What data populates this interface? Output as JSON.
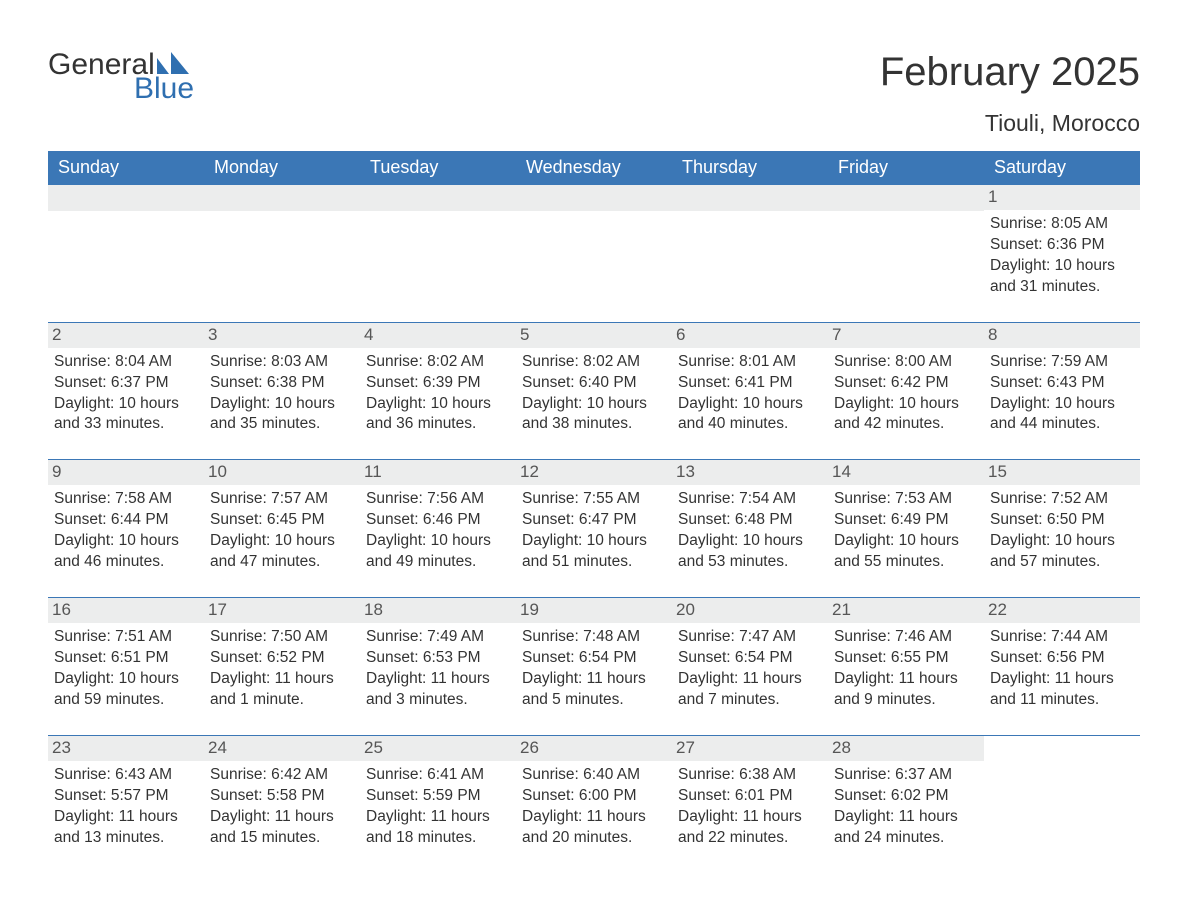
{
  "brand": {
    "line1": "General",
    "line2": "Blue",
    "icon_color": "#2f6fb0",
    "text_color": "#333333"
  },
  "header": {
    "title": "February 2025",
    "location": "Tiouli, Morocco"
  },
  "colors": {
    "header_bg": "#3b77b6",
    "header_fg": "#ffffff",
    "stripe_bg": "#eceded",
    "border": "#3b77b6",
    "text": "#333333",
    "muted": "#565656"
  },
  "days_of_week": [
    "Sunday",
    "Monday",
    "Tuesday",
    "Wednesday",
    "Thursday",
    "Friday",
    "Saturday"
  ],
  "weeks": [
    [
      null,
      null,
      null,
      null,
      null,
      null,
      {
        "n": "1",
        "sunrise": "Sunrise: 8:05 AM",
        "sunset": "Sunset: 6:36 PM",
        "daylight": "Daylight: 10 hours and 31 minutes."
      }
    ],
    [
      {
        "n": "2",
        "sunrise": "Sunrise: 8:04 AM",
        "sunset": "Sunset: 6:37 PM",
        "daylight": "Daylight: 10 hours and 33 minutes."
      },
      {
        "n": "3",
        "sunrise": "Sunrise: 8:03 AM",
        "sunset": "Sunset: 6:38 PM",
        "daylight": "Daylight: 10 hours and 35 minutes."
      },
      {
        "n": "4",
        "sunrise": "Sunrise: 8:02 AM",
        "sunset": "Sunset: 6:39 PM",
        "daylight": "Daylight: 10 hours and 36 minutes."
      },
      {
        "n": "5",
        "sunrise": "Sunrise: 8:02 AM",
        "sunset": "Sunset: 6:40 PM",
        "daylight": "Daylight: 10 hours and 38 minutes."
      },
      {
        "n": "6",
        "sunrise": "Sunrise: 8:01 AM",
        "sunset": "Sunset: 6:41 PM",
        "daylight": "Daylight: 10 hours and 40 minutes."
      },
      {
        "n": "7",
        "sunrise": "Sunrise: 8:00 AM",
        "sunset": "Sunset: 6:42 PM",
        "daylight": "Daylight: 10 hours and 42 minutes."
      },
      {
        "n": "8",
        "sunrise": "Sunrise: 7:59 AM",
        "sunset": "Sunset: 6:43 PM",
        "daylight": "Daylight: 10 hours and 44 minutes."
      }
    ],
    [
      {
        "n": "9",
        "sunrise": "Sunrise: 7:58 AM",
        "sunset": "Sunset: 6:44 PM",
        "daylight": "Daylight: 10 hours and 46 minutes."
      },
      {
        "n": "10",
        "sunrise": "Sunrise: 7:57 AM",
        "sunset": "Sunset: 6:45 PM",
        "daylight": "Daylight: 10 hours and 47 minutes."
      },
      {
        "n": "11",
        "sunrise": "Sunrise: 7:56 AM",
        "sunset": "Sunset: 6:46 PM",
        "daylight": "Daylight: 10 hours and 49 minutes."
      },
      {
        "n": "12",
        "sunrise": "Sunrise: 7:55 AM",
        "sunset": "Sunset: 6:47 PM",
        "daylight": "Daylight: 10 hours and 51 minutes."
      },
      {
        "n": "13",
        "sunrise": "Sunrise: 7:54 AM",
        "sunset": "Sunset: 6:48 PM",
        "daylight": "Daylight: 10 hours and 53 minutes."
      },
      {
        "n": "14",
        "sunrise": "Sunrise: 7:53 AM",
        "sunset": "Sunset: 6:49 PM",
        "daylight": "Daylight: 10 hours and 55 minutes."
      },
      {
        "n": "15",
        "sunrise": "Sunrise: 7:52 AM",
        "sunset": "Sunset: 6:50 PM",
        "daylight": "Daylight: 10 hours and 57 minutes."
      }
    ],
    [
      {
        "n": "16",
        "sunrise": "Sunrise: 7:51 AM",
        "sunset": "Sunset: 6:51 PM",
        "daylight": "Daylight: 10 hours and 59 minutes."
      },
      {
        "n": "17",
        "sunrise": "Sunrise: 7:50 AM",
        "sunset": "Sunset: 6:52 PM",
        "daylight": "Daylight: 11 hours and 1 minute."
      },
      {
        "n": "18",
        "sunrise": "Sunrise: 7:49 AM",
        "sunset": "Sunset: 6:53 PM",
        "daylight": "Daylight: 11 hours and 3 minutes."
      },
      {
        "n": "19",
        "sunrise": "Sunrise: 7:48 AM",
        "sunset": "Sunset: 6:54 PM",
        "daylight": "Daylight: 11 hours and 5 minutes."
      },
      {
        "n": "20",
        "sunrise": "Sunrise: 7:47 AM",
        "sunset": "Sunset: 6:54 PM",
        "daylight": "Daylight: 11 hours and 7 minutes."
      },
      {
        "n": "21",
        "sunrise": "Sunrise: 7:46 AM",
        "sunset": "Sunset: 6:55 PM",
        "daylight": "Daylight: 11 hours and 9 minutes."
      },
      {
        "n": "22",
        "sunrise": "Sunrise: 7:44 AM",
        "sunset": "Sunset: 6:56 PM",
        "daylight": "Daylight: 11 hours and 11 minutes."
      }
    ],
    [
      {
        "n": "23",
        "sunrise": "Sunrise: 6:43 AM",
        "sunset": "Sunset: 5:57 PM",
        "daylight": "Daylight: 11 hours and 13 minutes."
      },
      {
        "n": "24",
        "sunrise": "Sunrise: 6:42 AM",
        "sunset": "Sunset: 5:58 PM",
        "daylight": "Daylight: 11 hours and 15 minutes."
      },
      {
        "n": "25",
        "sunrise": "Sunrise: 6:41 AM",
        "sunset": "Sunset: 5:59 PM",
        "daylight": "Daylight: 11 hours and 18 minutes."
      },
      {
        "n": "26",
        "sunrise": "Sunrise: 6:40 AM",
        "sunset": "Sunset: 6:00 PM",
        "daylight": "Daylight: 11 hours and 20 minutes."
      },
      {
        "n": "27",
        "sunrise": "Sunrise: 6:38 AM",
        "sunset": "Sunset: 6:01 PM",
        "daylight": "Daylight: 11 hours and 22 minutes."
      },
      {
        "n": "28",
        "sunrise": "Sunrise: 6:37 AM",
        "sunset": "Sunset: 6:02 PM",
        "daylight": "Daylight: 11 hours and 24 minutes."
      },
      null
    ]
  ]
}
